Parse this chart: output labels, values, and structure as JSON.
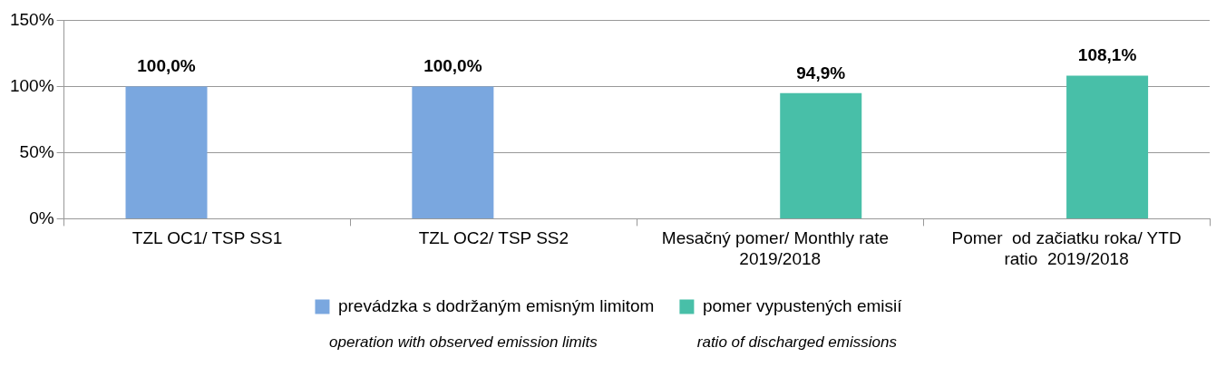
{
  "chart_data": {
    "type": "bar",
    "categories": [
      "TZL OC1/ TSP SS1",
      "TZL OC2/ TSP SS2",
      "Mesačný pomer/ Monthly rate   2019/2018",
      "Pomer  od začiatku roka/ YTD ratio  2019/2018"
    ],
    "series": [
      {
        "name": "prevádzka s dodržaným emisným limitom",
        "color": "#7aa7df",
        "values": [
          100,
          100,
          null,
          null
        ],
        "value_labels": [
          "100,0%",
          "100,0%",
          null,
          null
        ]
      },
      {
        "name": "pomer vypustených emisií",
        "color": "#48bfa8",
        "values": [
          null,
          null,
          94.9,
          108.1
        ],
        "value_labels": [
          null,
          null,
          "94,9%",
          "108,1%"
        ]
      }
    ],
    "ylim": [
      0,
      150
    ],
    "yticks": [
      {
        "value": 0,
        "label": "0%"
      },
      {
        "value": 50,
        "label": "50%"
      },
      {
        "value": 100,
        "label": "100%"
      },
      {
        "value": 150,
        "label": "150%"
      }
    ],
    "grid": "y",
    "legend": "bottom",
    "annotations": [
      "operation with observed emission limits",
      "ratio of discharged emissions"
    ]
  }
}
